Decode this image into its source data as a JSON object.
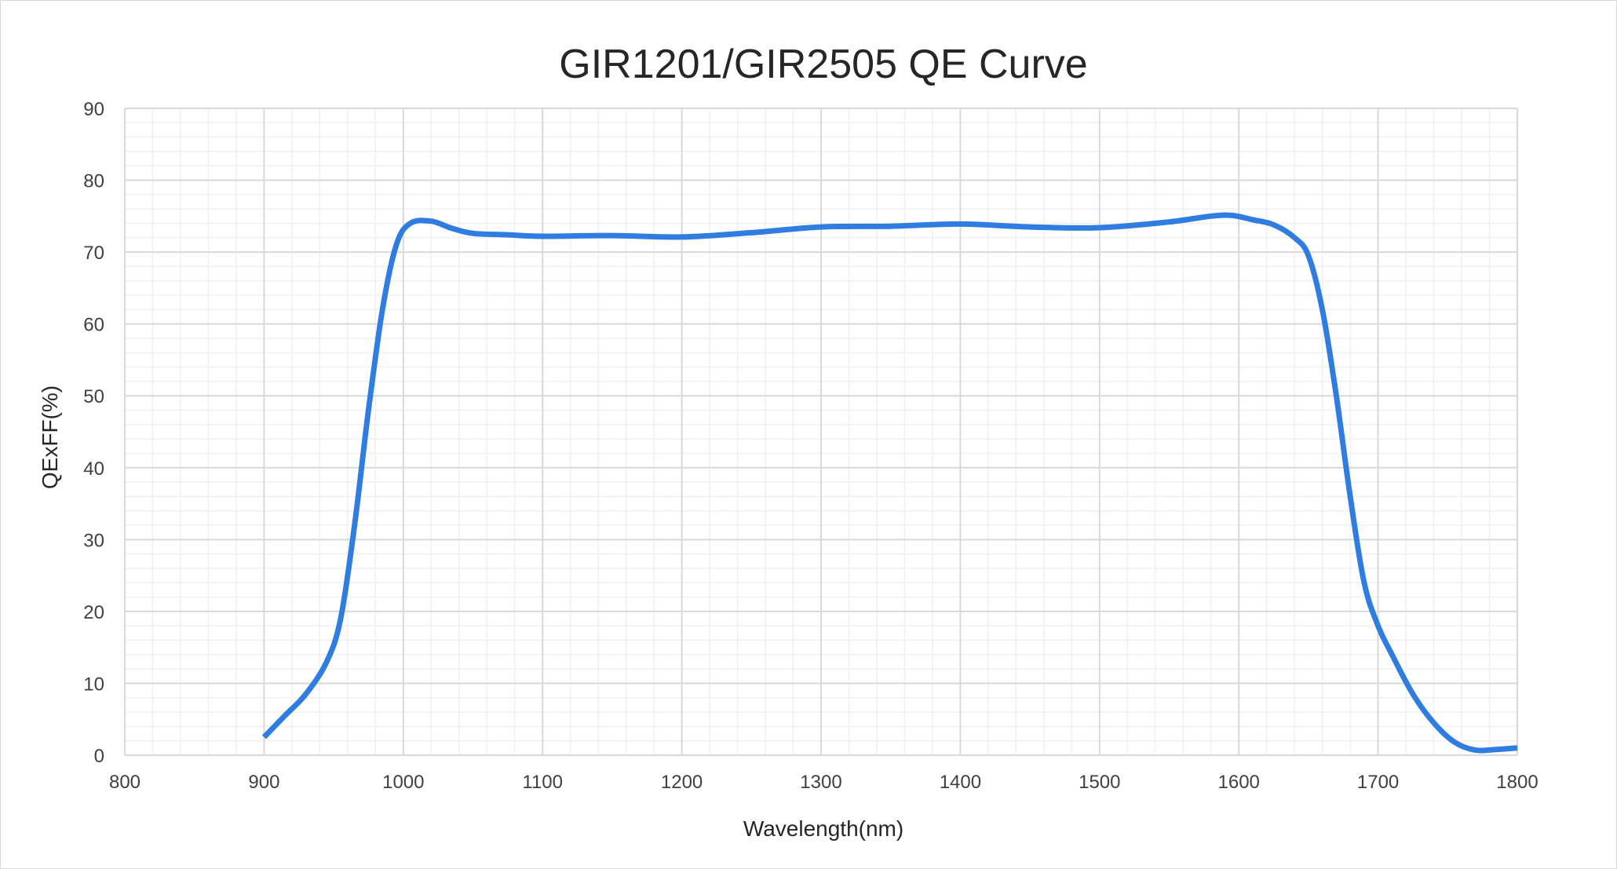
{
  "chart_data": {
    "type": "line",
    "title": "GIR1201/GIR2505 QE Curve",
    "xlabel": "Wavelength(nm)",
    "ylabel": "QExFF(%)",
    "xlim": [
      800,
      1800
    ],
    "ylim": [
      0,
      90
    ],
    "x_ticks": [
      800,
      900,
      1000,
      1100,
      1200,
      1300,
      1400,
      1500,
      1600,
      1700,
      1800
    ],
    "y_ticks": [
      0,
      10,
      20,
      30,
      40,
      50,
      60,
      70,
      80,
      90
    ],
    "grid": true,
    "legend": "none",
    "series": [
      {
        "color": "#2f7de1",
        "points": [
          [
            900,
            2.5
          ],
          [
            915,
            5.5
          ],
          [
            930,
            8.5
          ],
          [
            945,
            13
          ],
          [
            955,
            19
          ],
          [
            965,
            32
          ],
          [
            975,
            48
          ],
          [
            985,
            62
          ],
          [
            995,
            71
          ],
          [
            1005,
            74
          ],
          [
            1020,
            74.3
          ],
          [
            1035,
            73.3
          ],
          [
            1050,
            72.6
          ],
          [
            1075,
            72.4
          ],
          [
            1100,
            72.2
          ],
          [
            1150,
            72.3
          ],
          [
            1200,
            72.1
          ],
          [
            1250,
            72.7
          ],
          [
            1300,
            73.5
          ],
          [
            1350,
            73.6
          ],
          [
            1400,
            73.9
          ],
          [
            1450,
            73.5
          ],
          [
            1500,
            73.4
          ],
          [
            1550,
            74.2
          ],
          [
            1580,
            75.0
          ],
          [
            1595,
            75.1
          ],
          [
            1610,
            74.5
          ],
          [
            1625,
            73.8
          ],
          [
            1640,
            72.0
          ],
          [
            1650,
            69.5
          ],
          [
            1660,
            62
          ],
          [
            1670,
            50
          ],
          [
            1680,
            36
          ],
          [
            1690,
            24
          ],
          [
            1700,
            18
          ],
          [
            1710,
            14
          ],
          [
            1725,
            8.5
          ],
          [
            1740,
            4.5
          ],
          [
            1755,
            1.8
          ],
          [
            1770,
            0.7
          ],
          [
            1785,
            0.8
          ],
          [
            1800,
            1.0
          ]
        ]
      }
    ]
  }
}
